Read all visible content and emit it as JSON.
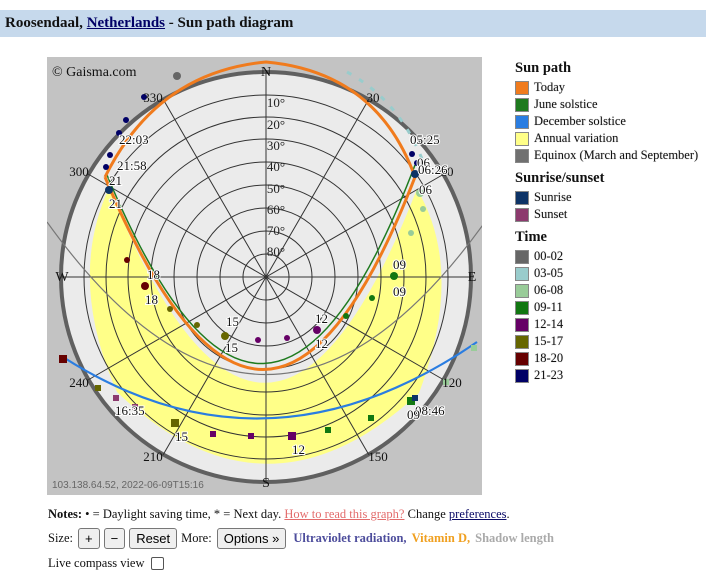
{
  "header": {
    "city": "Roosendaal,",
    "country": "Netherlands",
    "suffix": " - Sun path diagram"
  },
  "diagram": {
    "copyright": "© Gaisma.com",
    "footer": "103.138.64.52, 2022-06-09T15:16",
    "compass": {
      "n": "N",
      "e": "E",
      "s": "S",
      "w": "W"
    },
    "altitude_labels": [
      "10°",
      "20°",
      "30°",
      "40°",
      "50°",
      "60°",
      "70°",
      "80°"
    ],
    "azimuth_labels": [
      "30",
      "60",
      "120",
      "150",
      "210",
      "240",
      "300",
      "330"
    ],
    "hour_labels_today": [
      "05:25",
      "06",
      "06",
      "06:26",
      "09",
      "09",
      "12",
      "12",
      "15",
      "15",
      "18",
      "18",
      "21",
      "21",
      "21:58",
      "22:03"
    ],
    "hour_labels_december": [
      "08:46",
      "09",
      "12",
      "15",
      "16:35"
    ],
    "colors": {
      "sky_outside": "#c3c3c3",
      "horizon_disc": "#ebebeb",
      "annual_variation": "#ffff88",
      "today_path": "#f07b1d",
      "june_path": "#1e7a1e",
      "december_path": "#2a7de1",
      "equinox_path": "#666666"
    }
  },
  "legend": {
    "sun_path": {
      "title": "Sun path",
      "items": [
        {
          "label": "Today",
          "color": "#f07b1d"
        },
        {
          "label": "June solstice",
          "color": "#1e7a1e"
        },
        {
          "label": "December solstice",
          "color": "#2a7de1"
        },
        {
          "label": "Annual variation",
          "color": "#ffff88"
        },
        {
          "label": "Equinox (March and September)",
          "color": "#707070"
        }
      ]
    },
    "sunrise_sunset": {
      "title": "Sunrise/sunset",
      "items": [
        {
          "label": "Sunrise",
          "color": "#0d3366"
        },
        {
          "label": "Sunset",
          "color": "#8c3a6e"
        }
      ]
    },
    "time": {
      "title": "Time",
      "items": [
        {
          "label": "00-02",
          "color": "#666666"
        },
        {
          "label": "03-05",
          "color": "#99cccc"
        },
        {
          "label": "06-08",
          "color": "#99cc99"
        },
        {
          "label": "09-11",
          "color": "#117711"
        },
        {
          "label": "12-14",
          "color": "#660066"
        },
        {
          "label": "15-17",
          "color": "#666600"
        },
        {
          "label": "18-20",
          "color": "#660000"
        },
        {
          "label": "21-23",
          "color": "#000066"
        }
      ]
    }
  },
  "notes": {
    "prefix": "Notes:",
    "text1": " • = Daylight saving time, * = Next day. ",
    "how_to": "How to read this graph?",
    "text2": " Change ",
    "preferences": "preferences",
    "text3": "."
  },
  "controls": {
    "size_label": "Size:",
    "plus": "+",
    "minus": "−",
    "reset": "Reset",
    "more_label": "More:",
    "options": "Options »",
    "uv": "Ultraviolet radiation,",
    "vitd": "Vitamin D,",
    "shadow": "Shadow length"
  },
  "compass_view": {
    "label": "Live compass view"
  }
}
